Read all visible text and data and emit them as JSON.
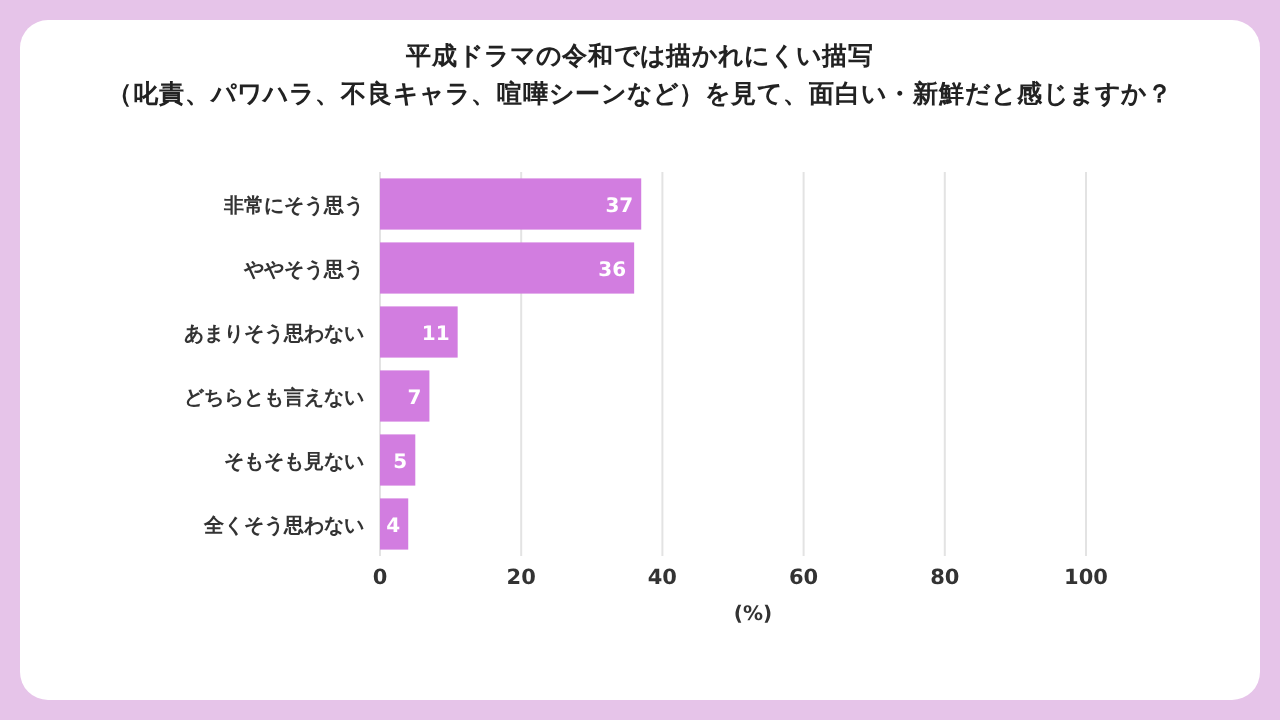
{
  "chart_data": {
    "type": "bar",
    "orientation": "horizontal",
    "title": "平成ドラマの令和では描かれにくい描写",
    "subtitle": "（叱責、パワハラ、不良キャラ、喧嘩シーンなど）を見て、面白い・新鮮だと感じますか？",
    "categories": [
      "非常にそう思う",
      "ややそう思う",
      "あまりそう思わない",
      "どちらとも言えない",
      "そもそも見ない",
      "全くそう思わない"
    ],
    "values": [
      37,
      36,
      11,
      7,
      5,
      4
    ],
    "color": "#d27de0",
    "data_labels": true,
    "xlim": [
      0,
      100
    ],
    "xticks": [
      0,
      20,
      40,
      60,
      80,
      100
    ],
    "xlabel": "(%)",
    "grid": "x"
  }
}
